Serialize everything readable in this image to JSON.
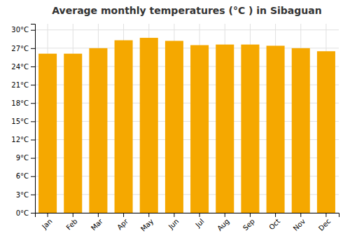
{
  "chart_data": {
    "type": "bar",
    "title": "Average monthly temperatures (°C ) in Sibaguan",
    "categories": [
      "Jan",
      "Feb",
      "Mar",
      "Apr",
      "May",
      "Jun",
      "Jul",
      "Aug",
      "Sep",
      "Oct",
      "Nov",
      "Dec"
    ],
    "values": [
      26.1,
      26.1,
      27.0,
      28.3,
      28.7,
      28.2,
      27.5,
      27.6,
      27.6,
      27.4,
      27.0,
      26.5
    ],
    "color": "#F5A800",
    "ylim": [
      0,
      31
    ],
    "yticks": [
      {
        "value": 0,
        "label": "0°C"
      },
      {
        "value": 3,
        "label": "3°C"
      },
      {
        "value": 6,
        "label": "6°C"
      },
      {
        "value": 9,
        "label": "9°C"
      },
      {
        "value": 12,
        "label": "12°C"
      },
      {
        "value": 15,
        "label": "15°C"
      },
      {
        "value": 18,
        "label": "18°C"
      },
      {
        "value": 21,
        "label": "21°C"
      },
      {
        "value": 24,
        "label": "24°C"
      },
      {
        "value": 27,
        "label": "27°C"
      },
      {
        "value": 30,
        "label": "30°C"
      }
    ],
    "grid": true
  }
}
